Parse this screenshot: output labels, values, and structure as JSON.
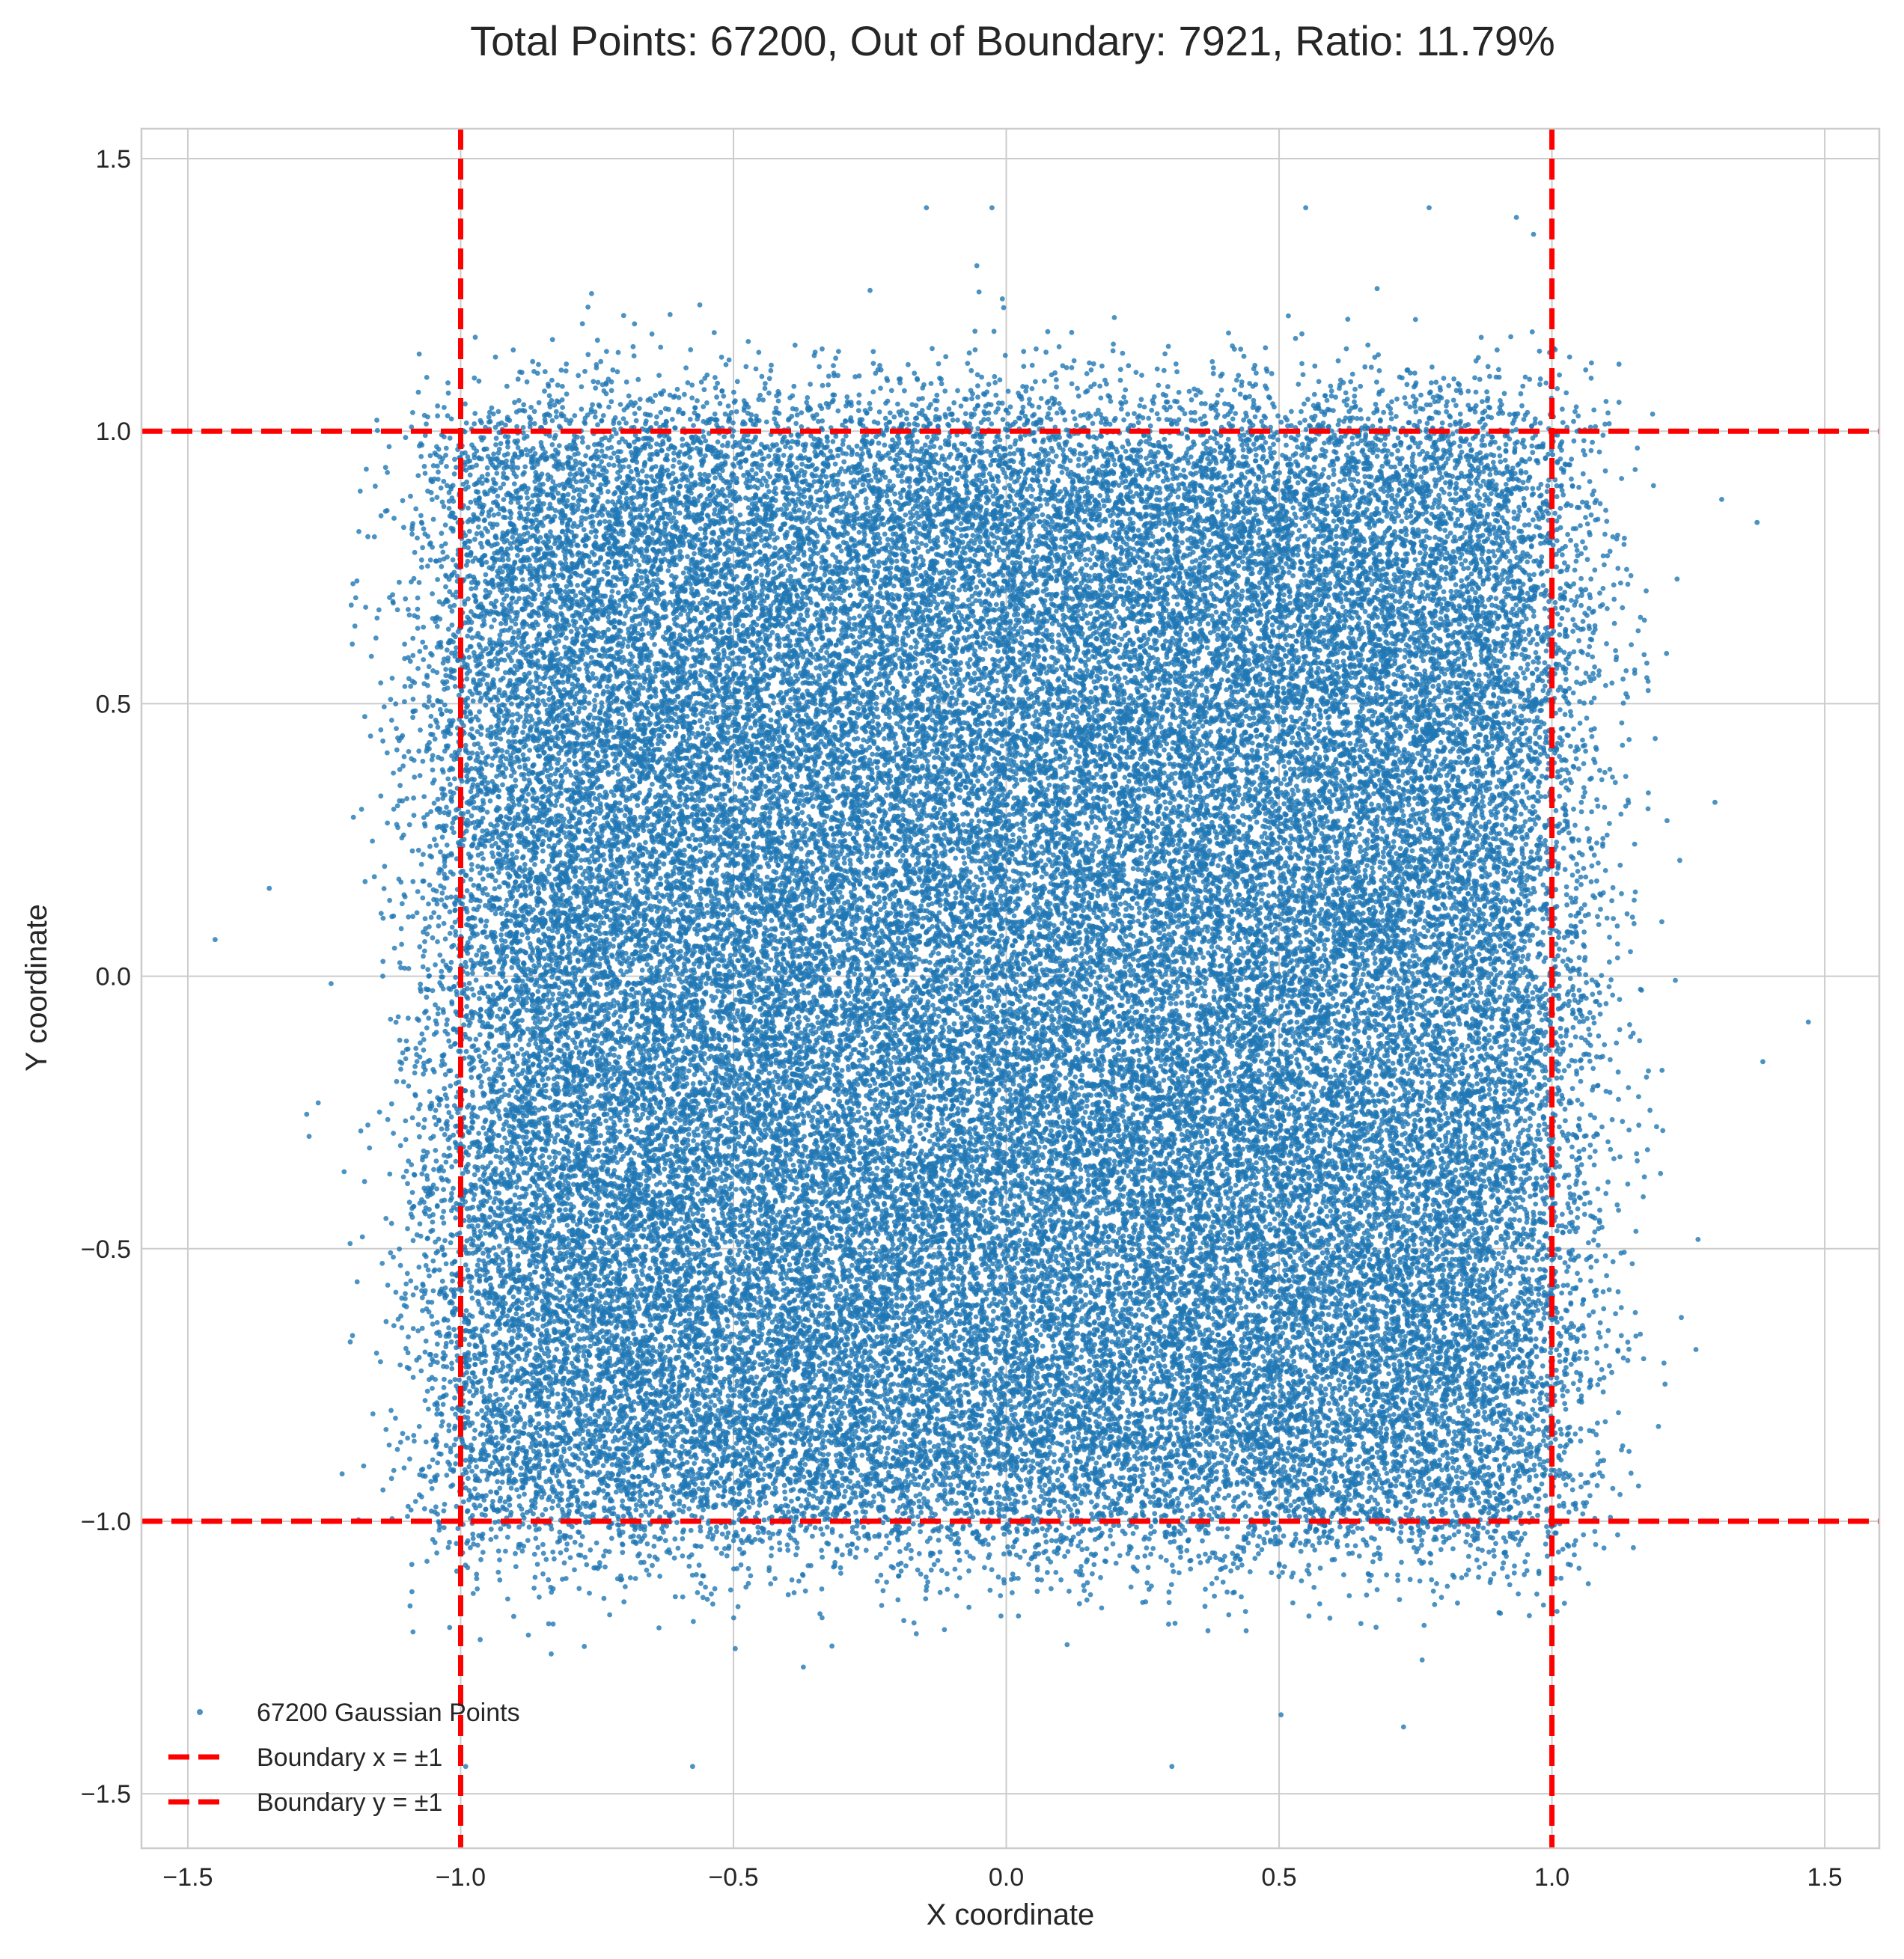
{
  "chart_data": {
    "type": "scatter",
    "title": "Total Points: 67200, Out of Boundary: 7921, Ratio: 11.79%",
    "xlabel": "X coordinate",
    "ylabel": "Y coordinate",
    "xlim": [
      -1.585,
      1.6
    ],
    "ylim": [
      -1.6,
      1.555
    ],
    "xticks": [
      -1.5,
      -1.0,
      -0.5,
      0.0,
      0.5,
      1.0,
      1.5
    ],
    "yticks": [
      -1.5,
      -1.0,
      -0.5,
      0.0,
      0.5,
      1.0,
      1.5
    ],
    "xtick_labels": [
      "−1.5",
      "−1.0",
      "−0.5",
      "0.0",
      "0.5",
      "1.0",
      "1.5"
    ],
    "ytick_labels": [
      "−1.5",
      "−1.0",
      "−0.5",
      "0.0",
      "0.5",
      "1.0",
      "1.5"
    ],
    "grid": true,
    "legend_position": "lower-left",
    "total_points": 67200,
    "out_of_boundary": 7921,
    "ratio_percent": 11.79,
    "series": [
      {
        "name": "67200 Gaussian Points",
        "kind": "scatter",
        "color": "#1f77b4",
        "count": 67200,
        "x_range": [
          -1.45,
          1.47
        ],
        "y_range": [
          -1.45,
          1.41
        ]
      },
      {
        "name": "Boundary x = ±1",
        "kind": "vline",
        "color": "#ff0000",
        "style": "dashed",
        "values": [
          -1.0,
          1.0
        ]
      },
      {
        "name": "Boundary y = ±1",
        "kind": "hline",
        "color": "#ff0000",
        "style": "dashed",
        "values": [
          -1.0,
          1.0
        ]
      }
    ]
  }
}
